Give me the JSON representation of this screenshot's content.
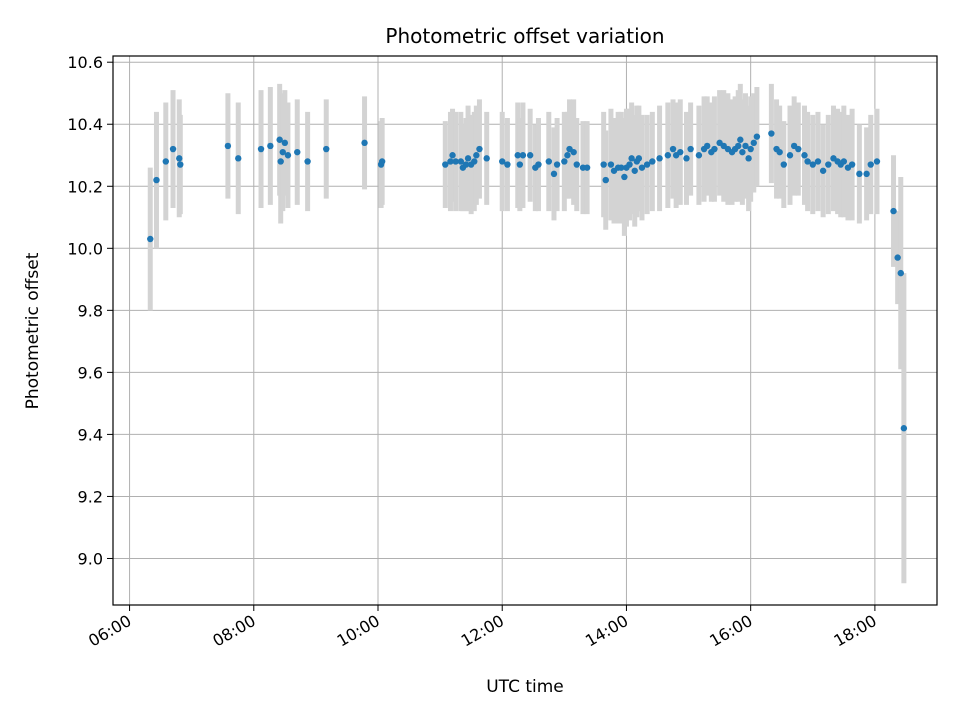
{
  "chart_data": {
    "type": "scatter",
    "title": "Photometric offset variation",
    "xlabel": "UTC time",
    "ylabel": "Photometric offset",
    "x_ticks": [
      "06:00",
      "08:00",
      "10:00",
      "12:00",
      "14:00",
      "16:00",
      "18:00"
    ],
    "y_ticks": [
      "9.0",
      "9.2",
      "9.4",
      "9.6",
      "9.8",
      "10.0",
      "10.2",
      "10.4",
      "10.6"
    ],
    "xlim": [
      "05:44",
      "19:00"
    ],
    "ylim": [
      8.85,
      10.62
    ],
    "grid": true,
    "marker_color": "#1f77b4",
    "errorbar_color": "#d3d3d3",
    "series": [
      {
        "points": [
          [
            "06:20",
            10.03,
            0.23
          ],
          [
            "06:26",
            10.22,
            0.22
          ],
          [
            "06:35",
            10.28,
            0.19
          ],
          [
            "06:42",
            10.32,
            0.19
          ],
          [
            "06:48",
            10.29,
            0.19
          ],
          [
            "06:49",
            10.27,
            0.16
          ],
          [
            "07:35",
            10.33,
            0.17
          ],
          [
            "07:45",
            10.29,
            0.18
          ],
          [
            "08:07",
            10.32,
            0.19
          ],
          [
            "08:16",
            10.33,
            0.19
          ],
          [
            "08:25",
            10.35,
            0.18
          ],
          [
            "08:26",
            10.28,
            0.2
          ],
          [
            "08:28",
            10.31,
            0.19
          ],
          [
            "08:30",
            10.34,
            0.17
          ],
          [
            "08:33",
            10.3,
            0.17
          ],
          [
            "08:42",
            10.31,
            0.17
          ],
          [
            "08:52",
            10.28,
            0.16
          ],
          [
            "09:10",
            10.32,
            0.16
          ],
          [
            "09:47",
            10.34,
            0.15
          ],
          [
            "10:03",
            10.27,
            0.14
          ],
          [
            "10:04",
            10.28,
            0.14
          ],
          [
            "11:05",
            10.27,
            0.14
          ],
          [
            "11:10",
            10.28,
            0.16
          ],
          [
            "11:12",
            10.3,
            0.15
          ],
          [
            "11:15",
            10.28,
            0.16
          ],
          [
            "11:20",
            10.28,
            0.16
          ],
          [
            "11:22",
            10.26,
            0.14
          ],
          [
            "11:25",
            10.27,
            0.15
          ],
          [
            "11:27",
            10.29,
            0.17
          ],
          [
            "11:30",
            10.27,
            0.16
          ],
          [
            "11:33",
            10.28,
            0.16
          ],
          [
            "11:35",
            10.3,
            0.16
          ],
          [
            "11:38",
            10.32,
            0.16
          ],
          [
            "11:45",
            10.29,
            0.15
          ],
          [
            "12:00",
            10.28,
            0.16
          ],
          [
            "12:05",
            10.27,
            0.15
          ],
          [
            "12:15",
            10.3,
            0.17
          ],
          [
            "12:17",
            10.27,
            0.15
          ],
          [
            "12:20",
            10.3,
            0.17
          ],
          [
            "12:27",
            10.3,
            0.15
          ],
          [
            "12:32",
            10.26,
            0.14
          ],
          [
            "12:35",
            10.27,
            0.15
          ],
          [
            "12:45",
            10.28,
            0.16
          ],
          [
            "12:50",
            10.24,
            0.15
          ],
          [
            "12:53",
            10.27,
            0.15
          ],
          [
            "13:00",
            10.28,
            0.16
          ],
          [
            "13:03",
            10.3,
            0.14
          ],
          [
            "13:05",
            10.32,
            0.16
          ],
          [
            "13:09",
            10.31,
            0.17
          ],
          [
            "13:12",
            10.27,
            0.15
          ],
          [
            "13:18",
            10.26,
            0.15
          ],
          [
            "13:22",
            10.26,
            0.15
          ],
          [
            "13:38",
            10.27,
            0.17
          ],
          [
            "13:40",
            10.22,
            0.16
          ],
          [
            "13:45",
            10.27,
            0.18
          ],
          [
            "13:48",
            10.25,
            0.17
          ],
          [
            "13:52",
            10.26,
            0.18
          ],
          [
            "13:55",
            10.26,
            0.18
          ],
          [
            "13:58",
            10.23,
            0.19
          ],
          [
            "14:00",
            10.26,
            0.19
          ],
          [
            "14:03",
            10.27,
            0.18
          ],
          [
            "14:05",
            10.29,
            0.18
          ],
          [
            "14:08",
            10.25,
            0.18
          ],
          [
            "14:10",
            10.28,
            0.18
          ],
          [
            "14:12",
            10.29,
            0.17
          ],
          [
            "14:15",
            10.26,
            0.17
          ],
          [
            "14:20",
            10.27,
            0.16
          ],
          [
            "14:25",
            10.28,
            0.16
          ],
          [
            "14:32",
            10.29,
            0.17
          ],
          [
            "14:40",
            10.3,
            0.17
          ],
          [
            "14:45",
            10.32,
            0.16
          ],
          [
            "14:48",
            10.3,
            0.17
          ],
          [
            "14:52",
            10.31,
            0.17
          ],
          [
            "14:58",
            10.29,
            0.15
          ],
          [
            "15:02",
            10.32,
            0.15
          ],
          [
            "15:10",
            10.3,
            0.16
          ],
          [
            "15:15",
            10.32,
            0.17
          ],
          [
            "15:18",
            10.33,
            0.16
          ],
          [
            "15:22",
            10.31,
            0.16
          ],
          [
            "15:25",
            10.32,
            0.17
          ],
          [
            "15:30",
            10.34,
            0.17
          ],
          [
            "15:34",
            10.33,
            0.18
          ],
          [
            "15:38",
            10.32,
            0.18
          ],
          [
            "15:42",
            10.31,
            0.17
          ],
          [
            "15:45",
            10.32,
            0.17
          ],
          [
            "15:48",
            10.33,
            0.18
          ],
          [
            "15:50",
            10.35,
            0.18
          ],
          [
            "15:52",
            10.31,
            0.17
          ],
          [
            "15:55",
            10.33,
            0.17
          ],
          [
            "15:58",
            10.29,
            0.17
          ],
          [
            "16:00",
            10.32,
            0.17
          ],
          [
            "16:03",
            10.34,
            0.16
          ],
          [
            "16:06",
            10.36,
            0.16
          ],
          [
            "16:20",
            10.37,
            0.16
          ],
          [
            "16:25",
            10.32,
            0.16
          ],
          [
            "16:28",
            10.31,
            0.15
          ],
          [
            "16:32",
            10.27,
            0.14
          ],
          [
            "16:38",
            10.3,
            0.16
          ],
          [
            "16:42",
            10.33,
            0.16
          ],
          [
            "16:46",
            10.32,
            0.15
          ],
          [
            "16:52",
            10.3,
            0.16
          ],
          [
            "16:55",
            10.28,
            0.16
          ],
          [
            "17:00",
            10.27,
            0.16
          ],
          [
            "17:05",
            10.28,
            0.16
          ],
          [
            "17:10",
            10.25,
            0.15
          ],
          [
            "17:15",
            10.27,
            0.16
          ],
          [
            "17:20",
            10.29,
            0.17
          ],
          [
            "17:24",
            10.28,
            0.17
          ],
          [
            "17:27",
            10.27,
            0.17
          ],
          [
            "17:30",
            10.28,
            0.18
          ],
          [
            "17:34",
            10.26,
            0.17
          ],
          [
            "17:38",
            10.27,
            0.18
          ],
          [
            "17:45",
            10.24,
            0.16
          ],
          [
            "17:52",
            10.24,
            0.15
          ],
          [
            "17:56",
            10.27,
            0.16
          ],
          [
            "18:02",
            10.28,
            0.17
          ],
          [
            "18:18",
            10.12,
            0.18
          ],
          [
            "18:22",
            9.97,
            0.15
          ],
          [
            "18:25",
            9.92,
            0.31
          ],
          [
            "18:28",
            9.42,
            0.5
          ]
        ]
      }
    ]
  }
}
